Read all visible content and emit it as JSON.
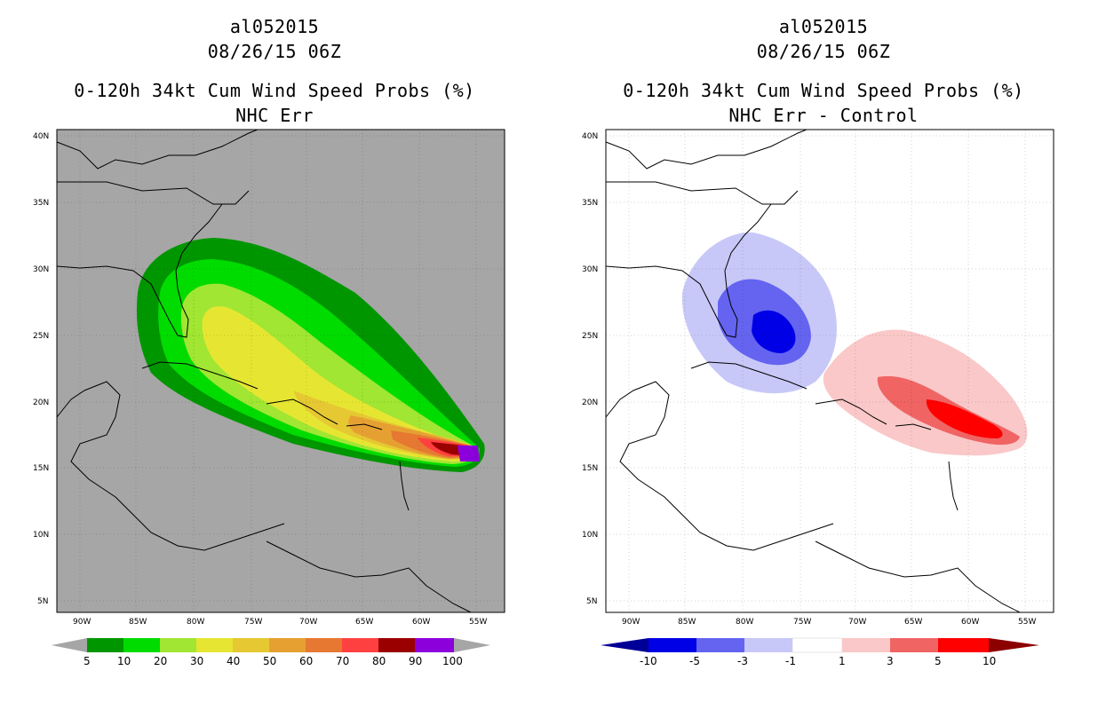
{
  "panels": [
    {
      "storm_id": "al052015",
      "datetime": "08/26/15 06Z",
      "title": "0-120h 34kt Cum Wind Speed Probs (%)",
      "subtitle": "NHC Err",
      "background": "#a6a6a6",
      "colorbar": {
        "labels": [
          "5",
          "10",
          "20",
          "30",
          "40",
          "50",
          "60",
          "70",
          "80",
          "90",
          "100"
        ],
        "colors": [
          "#009600",
          "#00dc00",
          "#a0e632",
          "#e6e632",
          "#e6c832",
          "#e6a032",
          "#e67832",
          "#ff4040",
          "#9b0000",
          "#8c00dc"
        ],
        "end_low": "#a6a6a6",
        "end_high": "#a6a6a6"
      }
    },
    {
      "storm_id": "al052015",
      "datetime": "08/26/15 06Z",
      "title": "0-120h 34kt Cum Wind Speed Probs (%)",
      "subtitle": "NHC Err - Control",
      "background": "#ffffff",
      "colorbar": {
        "labels": [
          "-10",
          "-5",
          "-3",
          "-1",
          "1",
          "3",
          "5",
          "10"
        ],
        "colors": [
          "#0000e6",
          "#6464f0",
          "#c8c8f8",
          "#ffffff",
          "#fac8c8",
          "#f06464",
          "#ff0000"
        ],
        "end_low": "#000096",
        "end_high": "#8c0000"
      }
    }
  ],
  "axes": {
    "lat_labels": [
      "40N",
      "35N",
      "30N",
      "25N",
      "20N",
      "15N",
      "10N",
      "5N"
    ],
    "lon_labels": [
      "90W",
      "85W",
      "80W",
      "75W",
      "70W",
      "65W",
      "60W",
      "55W"
    ]
  }
}
